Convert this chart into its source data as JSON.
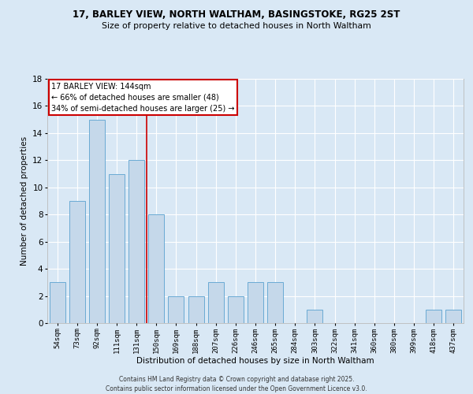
{
  "title_line1": "17, BARLEY VIEW, NORTH WALTHAM, BASINGSTOKE, RG25 2ST",
  "title_line2": "Size of property relative to detached houses in North Waltham",
  "xlabel": "Distribution of detached houses by size in North Waltham",
  "ylabel": "Number of detached properties",
  "categories": [
    "54sqm",
    "73sqm",
    "92sqm",
    "111sqm",
    "131sqm",
    "150sqm",
    "169sqm",
    "188sqm",
    "207sqm",
    "226sqm",
    "246sqm",
    "265sqm",
    "284sqm",
    "303sqm",
    "322sqm",
    "341sqm",
    "360sqm",
    "380sqm",
    "399sqm",
    "418sqm",
    "437sqm"
  ],
  "values": [
    3,
    9,
    15,
    11,
    12,
    8,
    2,
    2,
    3,
    2,
    3,
    3,
    0,
    1,
    0,
    0,
    0,
    0,
    0,
    1,
    1
  ],
  "bar_color": "#c5d8ea",
  "bar_edge_color": "#6aaad4",
  "background_color": "#d9e8f5",
  "grid_color": "#ffffff",
  "red_line_x": 4.5,
  "annotation_text": "17 BARLEY VIEW: 144sqm\n← 66% of detached houses are smaller (48)\n34% of semi-detached houses are larger (25) →",
  "annotation_box_color": "#ffffff",
  "annotation_box_edge": "#cc0000",
  "ylim": [
    0,
    18
  ],
  "yticks": [
    0,
    2,
    4,
    6,
    8,
    10,
    12,
    14,
    16,
    18
  ],
  "footer_line1": "Contains HM Land Registry data © Crown copyright and database right 2025.",
  "footer_line2": "Contains public sector information licensed under the Open Government Licence v3.0."
}
